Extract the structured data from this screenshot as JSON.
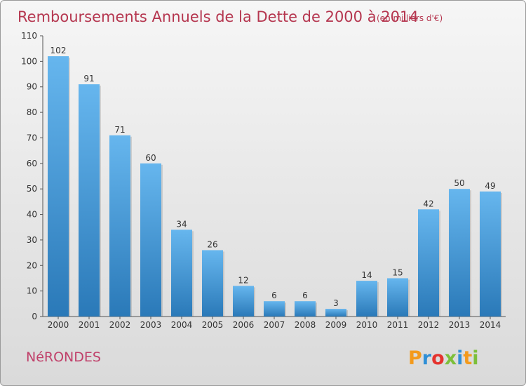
{
  "chart_data": {
    "type": "bar",
    "title": "Remboursements Annuels de la Dette de 2000 à 2014",
    "subtitle": "(en milliers d'€)",
    "categories": [
      "2000",
      "2001",
      "2002",
      "2003",
      "2004",
      "2005",
      "2006",
      "2007",
      "2008",
      "2009",
      "2010",
      "2011",
      "2012",
      "2013",
      "2014"
    ],
    "values": [
      102,
      91,
      71,
      60,
      34,
      26,
      12,
      6,
      6,
      3,
      14,
      15,
      42,
      50,
      49
    ],
    "ylim": [
      0,
      110
    ],
    "yticks": [
      0,
      10,
      20,
      30,
      40,
      50,
      60,
      70,
      80,
      90,
      100,
      110
    ],
    "xlabel": "",
    "ylabel": "",
    "grid": false
  },
  "commune": "NéRONDES",
  "logo": {
    "letters": [
      "P",
      "r",
      "o",
      "x",
      "i",
      "t",
      "i"
    ],
    "colors": [
      "#f39a1c",
      "#2f8fd6",
      "#e5322d",
      "#7cbf3a",
      "#2f8fd6",
      "#f39a1c",
      "#7cbf3a"
    ]
  },
  "colors": {
    "bar_light": "#66b6ee",
    "bar_dark": "#2a79b8",
    "title": "#b5364f"
  }
}
